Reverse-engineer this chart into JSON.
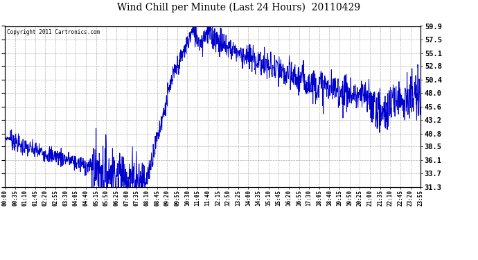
{
  "title": "Wind Chill per Minute (Last 24 Hours)  20110429",
  "copyright_text": "Copyright 2011 Cartronics.com",
  "y_ticks": [
    31.3,
    33.7,
    36.1,
    38.5,
    40.8,
    43.2,
    45.6,
    48.0,
    50.4,
    52.8,
    55.1,
    57.5,
    59.9
  ],
  "x_tick_labels": [
    "00:00",
    "00:35",
    "01:10",
    "01:45",
    "02:20",
    "02:55",
    "03:30",
    "04:05",
    "04:40",
    "05:15",
    "05:50",
    "06:25",
    "07:00",
    "07:35",
    "08:10",
    "08:45",
    "09:20",
    "09:55",
    "10:30",
    "11:05",
    "11:40",
    "12:15",
    "12:50",
    "13:25",
    "14:00",
    "14:35",
    "15:10",
    "15:45",
    "16:20",
    "16:55",
    "17:30",
    "18:05",
    "18:40",
    "19:15",
    "19:50",
    "20:25",
    "21:00",
    "21:35",
    "22:10",
    "22:45",
    "23:20",
    "23:55"
  ],
  "line_color": "#0000cc",
  "background_color": "#ffffff",
  "grid_color": "#b0b0b0",
  "title_fontsize": 10,
  "ylim": [
    31.3,
    59.9
  ],
  "figsize": [
    6.9,
    3.75
  ],
  "dpi": 100
}
